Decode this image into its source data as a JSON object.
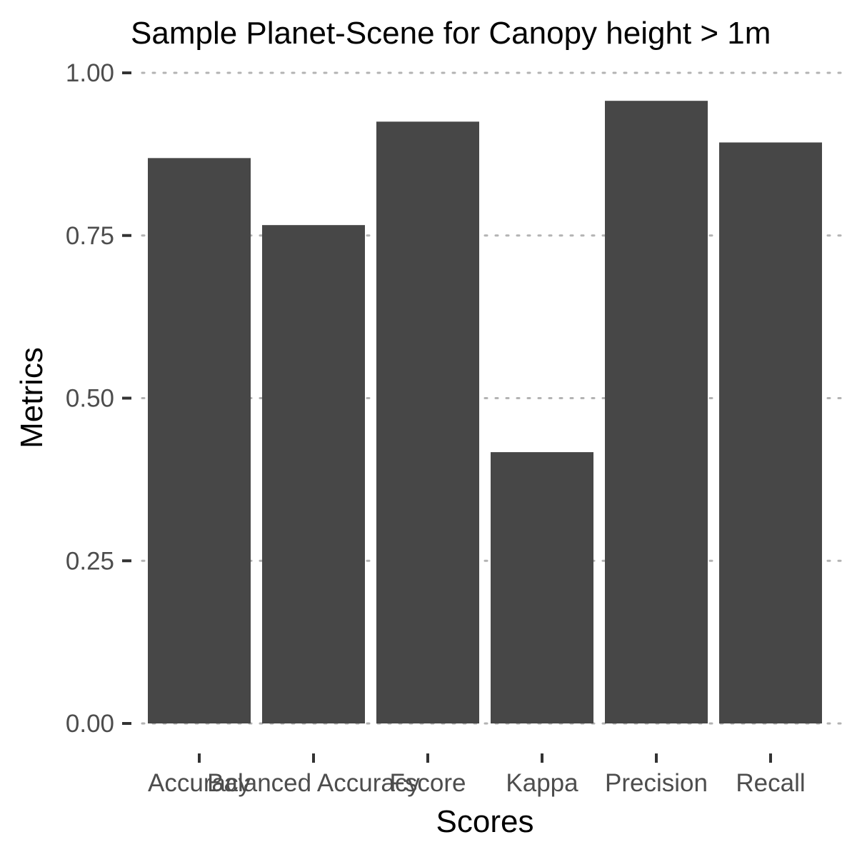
{
  "chart_data": {
    "type": "bar",
    "title": "Sample Planet-Scene for Canopy height > 1m",
    "xlabel": "Scores",
    "ylabel": "Metrics",
    "categories": [
      "Accuracy",
      "Balanced Accuracy",
      "Fscore",
      "Kappa",
      "Precision",
      "Recall"
    ],
    "values": [
      0.869,
      0.766,
      0.925,
      0.417,
      0.957,
      0.893
    ],
    "ylim": [
      0,
      1
    ],
    "yticks": [
      "0.00",
      "0.25",
      "0.50",
      "0.75",
      "1.00"
    ],
    "grid": "horizontal dotted",
    "legend": "none",
    "colors": {
      "bar": "#474747",
      "grid": "#b3b3b3",
      "tick_label": "#4d4d4d",
      "background": "#ffffff"
    }
  }
}
